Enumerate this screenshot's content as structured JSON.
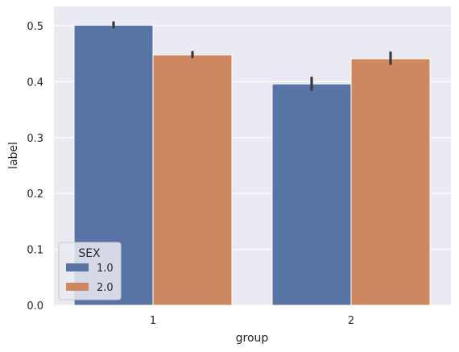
{
  "chart_data": {
    "type": "bar",
    "xlabel": "group",
    "ylabel": "label",
    "categories": [
      "1",
      "2"
    ],
    "ylim": [
      0,
      0.525
    ],
    "yticks": [
      "0.0",
      "0.1",
      "0.2",
      "0.3",
      "0.4",
      "0.5"
    ],
    "grid": true,
    "legend": {
      "title": "SEX",
      "placement": "lower-left"
    },
    "series": [
      {
        "name": "1.0",
        "color": "#5874a5",
        "values": [
          0.501,
          0.396
        ],
        "error_low": [
          0.497,
          0.386
        ],
        "error_high": [
          0.506,
          0.407
        ]
      },
      {
        "name": "2.0",
        "color": "#cd8860",
        "values": [
          0.448,
          0.441
        ],
        "error_low": [
          0.444,
          0.432
        ],
        "error_high": [
          0.453,
          0.452
        ]
      }
    ]
  }
}
